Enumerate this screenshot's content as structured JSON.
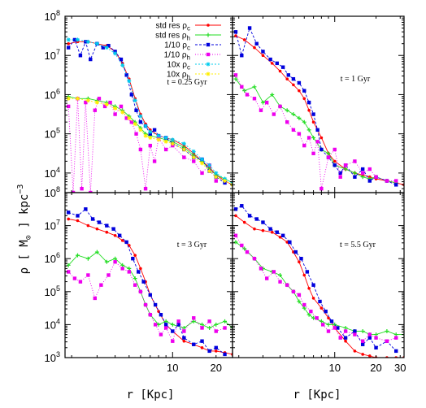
{
  "y_axis_label": "ρ  [  M",
  "y_axis_label_sub": "⊙",
  "y_axis_unit": "kpc",
  "y_axis_unit_sup": "−3",
  "x_axis_label_left": "r  [Kpc]",
  "x_axis_label_right": "r  [Kpc]",
  "y_ticks_top": [
    {
      "text": "10",
      "sup": "8",
      "v": 8
    },
    {
      "text": "10",
      "sup": "7",
      "v": 7
    },
    {
      "text": "10",
      "sup": "6",
      "v": 6
    },
    {
      "text": "10",
      "sup": "5",
      "v": 5
    },
    {
      "text": "10",
      "sup": "4",
      "v": 4
    }
  ],
  "y_ticks_bottom": [
    {
      "text": "10",
      "sup": "8",
      "v": 8
    },
    {
      "text": "10",
      "sup": "7",
      "v": 7
    },
    {
      "text": "10",
      "sup": "6",
      "v": 6
    },
    {
      "text": "10",
      "sup": "5",
      "v": 5
    },
    {
      "text": "10",
      "sup": "4",
      "v": 4
    },
    {
      "text": "10",
      "sup": "3",
      "v": 3
    }
  ],
  "x_ticks_left": [
    {
      "text": "10",
      "v": 10
    },
    {
      "text": "20",
      "v": 20
    }
  ],
  "x_ticks_right": [
    {
      "text": "10",
      "v": 10
    },
    {
      "text": "20",
      "v": 20
    },
    {
      "text": "30",
      "v": 30
    }
  ],
  "colors": {
    "std_c": "#ff0000",
    "std_h": "#22dd22",
    "tenth_c": "#0000dd",
    "tenth_h": "#ee00ee",
    "ten_c": "#00ccee",
    "ten_h": "#ffee00"
  },
  "chart_data": [
    {
      "type": "line",
      "panel": "top-left",
      "annotation": "t = 0.25 Gyr",
      "xlim": [
        1.8,
        26
      ],
      "ylim": [
        3.5,
        8
      ],
      "xscale": "log",
      "yscale": "log",
      "legend": {
        "placement": "top-right",
        "entries": [
          {
            "main": "std res ρ",
            "sub": "c",
            "color": "std_c"
          },
          {
            "main": "std res ρ",
            "sub": "h",
            "color": "std_h"
          },
          {
            "main": "1/10 ρ",
            "sub": "c",
            "color": "tenth_c"
          },
          {
            "main": "1/10 ρ",
            "sub": "h",
            "color": "tenth_h"
          },
          {
            "main": "10x ρ",
            "sub": "c",
            "color": "ten_c"
          },
          {
            "main": "10x ρ",
            "sub": "h",
            "color": "ten_h"
          }
        ]
      },
      "series": [
        {
          "name": "std res ρc",
          "color": "std_c",
          "x": [
            1.9,
            2.2,
            2.6,
            3,
            3.5,
            4,
            4.5,
            5,
            5.5,
            6,
            6.5,
            7,
            8,
            9,
            10,
            12,
            14,
            16,
            18,
            20,
            23,
            26
          ],
          "y": [
            7.3,
            7.35,
            7.35,
            7.3,
            7.25,
            7.1,
            6.8,
            6.4,
            5.9,
            5.5,
            5.25,
            5.1,
            4.95,
            4.9,
            4.85,
            4.7,
            4.5,
            4.3,
            4.15,
            3.95,
            3.8,
            3.7
          ]
        },
        {
          "name": "std res ρh",
          "color": "std_h",
          "x": [
            1.9,
            2.2,
            2.6,
            3,
            3.5,
            4,
            4.5,
            5,
            5.5,
            6,
            6.5,
            7,
            8,
            9,
            10,
            12,
            14,
            16,
            18,
            20,
            23,
            26
          ],
          "y": [
            5.95,
            5.9,
            5.9,
            5.85,
            5.8,
            5.7,
            5.6,
            5.45,
            5.3,
            5.15,
            5.0,
            4.95,
            4.9,
            4.85,
            4.8,
            4.65,
            4.45,
            4.3,
            4.1,
            3.95,
            3.85,
            3.75
          ]
        },
        {
          "name": "1/10 ρc",
          "color": "tenth_c",
          "x": [
            1.9,
            2.1,
            2.3,
            2.5,
            2.7,
            3,
            3.3,
            3.6,
            4,
            4.4,
            4.8,
            5.2,
            5.6,
            6,
            6.5,
            7,
            7.5,
            8,
            9,
            10,
            12,
            14,
            16,
            18,
            20,
            23
          ],
          "y": [
            7.2,
            7.4,
            7.0,
            7.35,
            6.9,
            7.3,
            7.2,
            7.25,
            7.1,
            6.9,
            6.5,
            6.0,
            5.6,
            5.3,
            5.2,
            5.0,
            5.1,
            4.95,
            4.9,
            4.75,
            4.6,
            4.4,
            4.35,
            4.05,
            3.9,
            3.75
          ]
        },
        {
          "name": "1/10 ρh",
          "color": "tenth_h",
          "x": [
            1.9,
            2.05,
            2.2,
            2.35,
            2.5,
            2.7,
            2.9,
            3.1,
            3.4,
            3.7,
            4,
            4.4,
            4.8,
            5.2,
            5.6,
            6,
            6.5,
            7,
            7.5,
            8,
            9,
            10,
            12,
            14,
            16,
            18,
            20
          ],
          "y": [
            5.7,
            3.5,
            5.9,
            3.6,
            5.8,
            3.5,
            5.6,
            5.9,
            5.7,
            5.8,
            5.5,
            5.7,
            5.4,
            5.3,
            5.0,
            4.6,
            3.6,
            4.7,
            4.3,
            4.9,
            4.6,
            4.7,
            4.4,
            4.3,
            4.0,
            4.2,
            3.8
          ]
        },
        {
          "name": "10x ρc",
          "color": "ten_c",
          "x": [
            1.9,
            2.2,
            2.6,
            3,
            3.5,
            4,
            4.5,
            5,
            5.5,
            6,
            6.5,
            7,
            8,
            9,
            10,
            12,
            14,
            16,
            18,
            20,
            23,
            26
          ],
          "y": [
            7.4,
            7.4,
            7.35,
            7.3,
            7.2,
            7.05,
            6.75,
            6.35,
            5.85,
            5.45,
            5.2,
            5.05,
            4.95,
            4.9,
            4.85,
            4.75,
            4.55,
            4.35,
            4.2,
            4.0,
            3.85,
            3.75
          ]
        },
        {
          "name": "10x ρh",
          "color": "ten_h",
          "x": [
            1.9,
            2.2,
            2.6,
            3,
            3.5,
            4,
            4.5,
            5,
            5.5,
            6,
            6.5,
            7,
            8,
            9,
            10,
            12,
            14,
            16,
            18,
            20,
            23,
            26
          ],
          "y": [
            5.9,
            5.9,
            5.85,
            5.8,
            5.75,
            5.65,
            5.55,
            5.4,
            5.25,
            5.1,
            4.95,
            4.9,
            4.85,
            4.8,
            4.75,
            4.6,
            4.4,
            4.25,
            4.05,
            3.9,
            3.8,
            3.7
          ]
        }
      ]
    },
    {
      "type": "line",
      "panel": "top-right",
      "annotation": "t = 1 Gyr",
      "xlim": [
        1.8,
        32
      ],
      "ylim": [
        3.5,
        8
      ],
      "xscale": "log",
      "yscale": "log",
      "series": [
        {
          "name": "std res ρc",
          "color": "std_c",
          "x": [
            1.9,
            2.2,
            2.6,
            3,
            3.5,
            4,
            4.5,
            5,
            5.5,
            6,
            6.5,
            7,
            8,
            9,
            10,
            12,
            14,
            16,
            18,
            20,
            24,
            28,
            32
          ],
          "y": [
            7.5,
            7.4,
            7.2,
            7.0,
            6.8,
            6.6,
            6.4,
            6.25,
            6.1,
            5.9,
            5.6,
            5.3,
            4.9,
            4.5,
            4.3,
            4.1,
            4.0,
            3.95,
            3.9,
            3.85,
            3.8,
            3.75,
            3.7
          ]
        },
        {
          "name": "std res ρh",
          "color": "std_h",
          "x": [
            1.9,
            2.2,
            2.6,
            3,
            3.5,
            4,
            4.5,
            5,
            5.5,
            6,
            6.5,
            7,
            8,
            9,
            10,
            12,
            14,
            16,
            18,
            20,
            24,
            28
          ],
          "y": [
            6.4,
            6.1,
            6.2,
            5.8,
            6.0,
            5.7,
            5.6,
            5.5,
            5.4,
            5.3,
            5.1,
            4.9,
            4.6,
            4.5,
            4.2,
            4.1,
            4.0,
            3.9,
            3.85,
            3.9,
            3.8,
            3.75
          ]
        },
        {
          "name": "1/10 ρc",
          "color": "tenth_c",
          "x": [
            1.9,
            2.1,
            2.4,
            2.7,
            3,
            3.4,
            3.8,
            4.2,
            4.6,
            5,
            5.5,
            6,
            6.5,
            7,
            7.5,
            8,
            9,
            10,
            11,
            12,
            14,
            16,
            18,
            20,
            24,
            28
          ],
          "y": [
            7.6,
            7.0,
            7.7,
            7.3,
            7.1,
            6.9,
            6.8,
            6.7,
            6.5,
            6.4,
            6.3,
            6.1,
            5.8,
            5.5,
            5.1,
            4.6,
            4.4,
            4.2,
            4.0,
            4.2,
            3.9,
            4.1,
            3.8,
            3.9,
            3.8,
            3.7
          ]
        },
        {
          "name": "1/10 ρh",
          "color": "tenth_h",
          "x": [
            1.9,
            2.1,
            2.3,
            2.6,
            2.9,
            3.2,
            3.6,
            4,
            4.5,
            5,
            5.5,
            6,
            6.5,
            7,
            7.5,
            8,
            9,
            10,
            11,
            12,
            14,
            16,
            18,
            20,
            24,
            28
          ],
          "y": [
            6.5,
            6.2,
            6.0,
            5.9,
            5.6,
            5.8,
            5.5,
            5.7,
            5.3,
            5.1,
            5.0,
            4.7,
            4.9,
            4.5,
            4.8,
            3.6,
            4.4,
            4.6,
            3.9,
            4.2,
            4.3,
            4.0,
            4.1,
            3.9,
            3.8,
            3.8
          ]
        }
      ]
    },
    {
      "type": "line",
      "panel": "bottom-left",
      "annotation": "t = 3 Gyr",
      "xlim": [
        1.8,
        26
      ],
      "ylim": [
        3,
        8
      ],
      "xscale": "log",
      "yscale": "log",
      "series": [
        {
          "name": "std res ρc",
          "color": "std_c",
          "x": [
            1.9,
            2.2,
            2.6,
            3,
            3.5,
            4,
            4.5,
            5,
            5.5,
            6,
            6.5,
            7,
            8,
            9,
            10,
            12,
            14,
            16,
            18,
            20,
            23,
            26
          ],
          "y": [
            7.2,
            7.15,
            7.0,
            6.9,
            6.8,
            6.7,
            6.55,
            6.4,
            6.1,
            5.7,
            5.3,
            4.9,
            4.4,
            4.0,
            3.8,
            3.5,
            3.4,
            3.3,
            3.2,
            3.2,
            3.15,
            3.1
          ]
        },
        {
          "name": "std res ρh",
          "color": "std_h",
          "x": [
            1.9,
            2.2,
            2.6,
            3,
            3.5,
            4,
            4.5,
            5,
            5.5,
            6,
            6.5,
            7,
            8,
            9,
            10,
            12,
            14,
            16,
            18,
            20,
            23,
            26
          ],
          "y": [
            5.8,
            6.1,
            6.0,
            6.2,
            5.9,
            6.0,
            5.8,
            5.7,
            5.4,
            5.0,
            4.6,
            4.3,
            4.0,
            4.1,
            4.0,
            3.9,
            4.1,
            4.0,
            3.9,
            4.0,
            4.1,
            3.9
          ]
        },
        {
          "name": "1/10 ρc",
          "color": "tenth_c",
          "x": [
            1.9,
            2.2,
            2.5,
            2.8,
            3.1,
            3.5,
            3.9,
            4.3,
            4.8,
            5.3,
            5.8,
            6.3,
            7,
            7.6,
            8.3,
            9,
            10,
            11,
            12,
            14,
            16,
            18,
            20,
            23
          ],
          "y": [
            7.4,
            7.3,
            7.5,
            7.2,
            7.1,
            7.0,
            6.9,
            6.7,
            6.5,
            6.0,
            5.6,
            5.3,
            4.9,
            4.6,
            4.3,
            4.0,
            3.8,
            4.0,
            3.6,
            3.4,
            3.5,
            3.2,
            3.3,
            3.1
          ]
        },
        {
          "name": "1/10 ρh",
          "color": "tenth_h",
          "x": [
            1.9,
            2.1,
            2.3,
            2.6,
            2.9,
            3.2,
            3.6,
            4,
            4.5,
            5,
            5.5,
            6,
            6.5,
            7,
            7.6,
            8.3,
            9,
            10,
            11,
            12,
            14,
            16,
            18,
            20,
            23
          ],
          "y": [
            5.6,
            5.4,
            5.3,
            5.5,
            4.8,
            5.2,
            5.5,
            5.9,
            5.7,
            5.6,
            5.2,
            5.0,
            4.6,
            4.3,
            4.0,
            3.7,
            3.9,
            3.5,
            4.1,
            3.8,
            4.2,
            3.9,
            4.1,
            3.8,
            3.9
          ]
        }
      ]
    },
    {
      "type": "line",
      "panel": "bottom-right",
      "annotation": "t = 5.5 Gyr",
      "xlim": [
        1.8,
        32
      ],
      "ylim": [
        3,
        8
      ],
      "xscale": "log",
      "yscale": "log",
      "series": [
        {
          "name": "std res ρc",
          "color": "std_c",
          "x": [
            1.9,
            2.2,
            2.6,
            3,
            3.5,
            4,
            4.5,
            5,
            5.5,
            6,
            6.5,
            7,
            8,
            9,
            10,
            12,
            14,
            16,
            18,
            20,
            24,
            28,
            32
          ],
          "y": [
            7.3,
            7.1,
            6.9,
            6.85,
            6.8,
            6.65,
            6.5,
            6.2,
            5.9,
            5.5,
            5.1,
            4.8,
            4.5,
            4.2,
            3.9,
            3.5,
            3.2,
            3.1,
            3.05,
            3.0,
            3.0,
            3.0,
            3.0
          ]
        },
        {
          "name": "std res ρh",
          "color": "std_h",
          "x": [
            1.9,
            2.2,
            2.6,
            3,
            3.5,
            4,
            4.5,
            5,
            5.5,
            6,
            6.5,
            7,
            8,
            9,
            10,
            12,
            14,
            16,
            18,
            20,
            24,
            28,
            32
          ],
          "y": [
            6.5,
            6.3,
            6.0,
            5.7,
            5.6,
            5.5,
            5.2,
            5.0,
            4.7,
            4.5,
            4.3,
            4.2,
            4.1,
            4.0,
            4.0,
            3.9,
            3.8,
            3.8,
            3.7,
            3.7,
            3.8,
            3.7,
            3.7
          ]
        },
        {
          "name": "1/10 ρc",
          "color": "tenth_c",
          "x": [
            1.9,
            2.1,
            2.4,
            2.7,
            3,
            3.4,
            3.8,
            4.2,
            4.7,
            5.2,
            5.7,
            6.3,
            7,
            7.8,
            8.6,
            9.5,
            10.5,
            12,
            14,
            16,
            18,
            20,
            24,
            28
          ],
          "y": [
            7.5,
            7.6,
            7.3,
            7.2,
            7.1,
            6.9,
            6.8,
            6.7,
            6.5,
            6.2,
            6.0,
            5.6,
            5.2,
            4.7,
            4.4,
            4.1,
            3.9,
            3.6,
            3.8,
            3.4,
            3.6,
            3.3,
            3.5,
            3.2
          ]
        },
        {
          "name": "1/10 ρh",
          "color": "tenth_h",
          "x": [
            1.9,
            2.1,
            2.3,
            2.6,
            2.9,
            3.2,
            3.6,
            4,
            4.5,
            5,
            5.5,
            6,
            6.7,
            7.4,
            8.2,
            9,
            10,
            11,
            12,
            14,
            16,
            18,
            20,
            24,
            28
          ],
          "y": [
            6.7,
            6.4,
            6.2,
            6.0,
            5.7,
            5.4,
            5.6,
            5.3,
            5.2,
            5.0,
            4.9,
            4.6,
            4.4,
            4.2,
            4.0,
            3.8,
            3.9,
            3.6,
            3.8,
            3.7,
            3.5,
            3.7,
            3.6,
            3.5,
            3.6
          ]
        }
      ]
    }
  ]
}
